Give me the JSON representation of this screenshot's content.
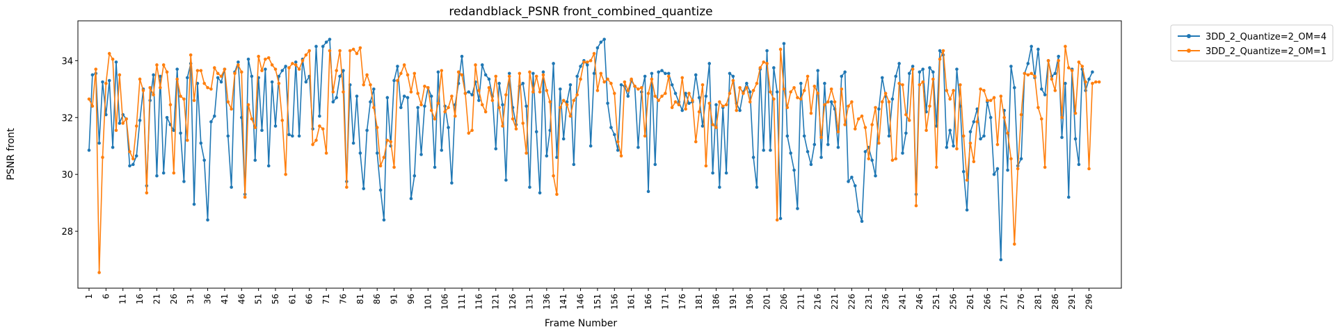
{
  "chart_data": {
    "type": "line",
    "title": "redandblack_PSNR front_combined_quantize",
    "xlabel": "Frame Number",
    "ylabel": "PSNR front",
    "xlim": [
      1,
      300
    ],
    "ylim": [
      26.0,
      35.4
    ],
    "x_ticks": [
      "1",
      "6",
      "11",
      "16",
      "21",
      "26",
      "31",
      "36",
      "41",
      "46",
      "51",
      "56",
      "61",
      "66",
      "71",
      "76",
      "81",
      "86",
      "91",
      "96",
      "101",
      "106",
      "111",
      "116",
      "121",
      "126",
      "131",
      "136",
      "141",
      "146",
      "151",
      "156",
      "161",
      "166",
      "171",
      "176",
      "181",
      "186",
      "191",
      "196",
      "201",
      "206",
      "211",
      "216",
      "221",
      "226",
      "231",
      "236",
      "241",
      "246",
      "251",
      "256",
      "261",
      "266",
      "271",
      "276",
      "281",
      "286",
      "291",
      "296"
    ],
    "y_ticks": [
      "28",
      "30",
      "32",
      "34"
    ],
    "y_tick_values": [
      28,
      30,
      32,
      34
    ],
    "legend_position": "outside-upper-right",
    "grid": false,
    "series": [
      {
        "name": "3DD_2_Quantize=2_OM=4",
        "color": "#1f77b4",
        "values": [
          30.85,
          33.5,
          33.55,
          31.1,
          33.25,
          32.1,
          33.3,
          30.95,
          33.95,
          31.8,
          32.1,
          31.95,
          30.3,
          30.35,
          30.65,
          31.9,
          33.0,
          29.6,
          32.6,
          33.5,
          29.95,
          33.45,
          30.05,
          32.0,
          31.75,
          31.55,
          33.7,
          31.45,
          29.75,
          33.4,
          33.9,
          28.95,
          33.2,
          31.1,
          30.5,
          28.4,
          31.85,
          32.05,
          33.4,
          33.25,
          33.7,
          31.35,
          29.55,
          33.6,
          33.95,
          32.0,
          29.3,
          34.05,
          33.45,
          30.5,
          33.4,
          31.55,
          33.7,
          30.3,
          33.25,
          31.7,
          33.45,
          33.65,
          33.8,
          31.4,
          31.35,
          33.95,
          31.35,
          34.05,
          33.25,
          33.45,
          31.6,
          34.5,
          32.05,
          34.5,
          34.65,
          34.75,
          32.55,
          32.7,
          33.45,
          33.65,
          29.75,
          33.15,
          31.1,
          32.75,
          30.75,
          29.5,
          31.55,
          32.55,
          33.0,
          30.75,
          29.45,
          28.4,
          32.7,
          31.0,
          33.3,
          33.8,
          32.35,
          32.75,
          32.7,
          29.15,
          29.95,
          32.35,
          30.7,
          32.4,
          33.05,
          32.75,
          30.25,
          33.6,
          30.85,
          32.4,
          31.65,
          29.7,
          32.45,
          33.2,
          34.15,
          32.85,
          32.9,
          32.8,
          33.25,
          32.6,
          33.85,
          33.5,
          33.35,
          32.75,
          30.9,
          33.2,
          32.45,
          29.8,
          33.55,
          32.35,
          31.75,
          33.1,
          33.2,
          32.4,
          29.55,
          33.55,
          31.5,
          29.35,
          33.6,
          30.65,
          31.55,
          33.9,
          30.6,
          33.0,
          31.25,
          32.55,
          33.15,
          30.35,
          33.45,
          33.8,
          34.0,
          33.85,
          31.0,
          33.55,
          34.45,
          34.65,
          34.75,
          32.5,
          31.65,
          31.4,
          30.85,
          33.15,
          33.1,
          32.75,
          33.3,
          33.1,
          30.95,
          32.9,
          33.45,
          29.4,
          33.55,
          30.35,
          33.6,
          33.65,
          33.55,
          33.55,
          33.15,
          32.85,
          32.55,
          32.25,
          32.85,
          32.5,
          32.55,
          33.5,
          32.7,
          31.7,
          32.75,
          33.9,
          30.05,
          32.45,
          29.55,
          32.35,
          30.05,
          33.55,
          33.45,
          32.5,
          32.25,
          32.9,
          33.2,
          32.9,
          30.6,
          29.55,
          33.7,
          30.85,
          34.35,
          30.85,
          33.75,
          32.9,
          28.45,
          34.6,
          31.35,
          30.75,
          30.15,
          28.8,
          33.2,
          31.35,
          30.8,
          30.35,
          31.05,
          33.65,
          30.6,
          33.2,
          31.05,
          32.55,
          32.3,
          30.95,
          33.45,
          33.6,
          29.75,
          29.9,
          29.6,
          28.7,
          28.35,
          30.8,
          30.95,
          30.5,
          29.95,
          32.3,
          33.4,
          32.75,
          31.35,
          32.65,
          33.45,
          33.9,
          30.75,
          31.45,
          33.55,
          33.8,
          29.3,
          33.6,
          33.7,
          32.2,
          33.75,
          33.6,
          31.7,
          34.35,
          34.2,
          30.95,
          31.55,
          31.0,
          33.7,
          32.4,
          30.1,
          28.75,
          31.5,
          31.85,
          32.3,
          31.25,
          31.35,
          32.55,
          32.0,
          30.0,
          30.2,
          27.0,
          32.25,
          30.15,
          33.8,
          33.05,
          30.3,
          30.55,
          33.55,
          33.9,
          34.5,
          33.4,
          34.4,
          33.0,
          32.8,
          34.0,
          33.45,
          33.55,
          34.15,
          31.3,
          33.2,
          29.2,
          33.7,
          31.25,
          30.35,
          33.7,
          32.95,
          33.35,
          33.6
        ]
      },
      {
        "name": "3DD_2_Quantize=2_OM=1",
        "color": "#ff7f0e",
        "values": [
          32.65,
          32.4,
          33.7,
          26.55,
          30.6,
          33.2,
          34.25,
          34.05,
          31.55,
          33.5,
          31.8,
          31.95,
          30.8,
          30.55,
          31.7,
          33.35,
          32.95,
          29.35,
          33.05,
          32.8,
          33.85,
          33.05,
          33.85,
          33.6,
          32.45,
          30.05,
          33.35,
          32.75,
          32.65,
          31.2,
          34.2,
          32.6,
          33.65,
          33.65,
          33.2,
          33.05,
          33.0,
          33.75,
          33.55,
          33.45,
          33.7,
          32.55,
          32.3,
          33.55,
          33.85,
          33.6,
          29.2,
          32.45,
          31.95,
          31.65,
          34.15,
          33.65,
          34.05,
          34.1,
          33.85,
          33.7,
          33.2,
          31.9,
          30.0,
          33.75,
          33.9,
          33.85,
          33.7,
          34.0,
          34.2,
          34.35,
          31.05,
          31.2,
          31.7,
          31.6,
          30.75,
          34.35,
          32.9,
          33.65,
          34.35,
          32.9,
          29.55,
          34.35,
          34.4,
          34.25,
          34.45,
          33.15,
          33.5,
          33.15,
          32.35,
          31.65,
          30.3,
          30.6,
          31.2,
          31.15,
          30.25,
          33.3,
          33.55,
          33.85,
          33.5,
          32.9,
          33.55,
          32.85,
          32.45,
          33.1,
          33.05,
          32.25,
          31.95,
          32.5,
          33.65,
          32.2,
          32.35,
          32.75,
          32.05,
          33.6,
          33.5,
          32.85,
          31.45,
          31.55,
          33.85,
          32.95,
          32.45,
          32.2,
          33.05,
          32.6,
          33.45,
          32.35,
          31.7,
          32.8,
          33.45,
          31.95,
          31.6,
          33.55,
          31.8,
          30.75,
          33.6,
          32.9,
          33.45,
          32.9,
          33.5,
          32.95,
          32.55,
          29.95,
          29.3,
          32.35,
          32.6,
          32.45,
          32.05,
          32.6,
          32.8,
          33.35,
          33.95,
          33.95,
          34.0,
          34.25,
          32.95,
          33.55,
          33.25,
          33.35,
          33.2,
          32.85,
          31.15,
          30.65,
          33.25,
          32.95,
          33.35,
          33.1,
          33.0,
          33.05,
          31.35,
          32.85,
          33.35,
          32.75,
          32.6,
          32.75,
          32.85,
          33.45,
          32.35,
          32.55,
          32.45,
          33.4,
          32.3,
          32.85,
          32.6,
          31.15,
          32.2,
          33.15,
          30.3,
          32.5,
          31.75,
          31.65,
          32.55,
          32.4,
          32.45,
          32.85,
          33.3,
          32.25,
          33.05,
          32.85,
          33.05,
          32.55,
          32.95,
          33.2,
          33.75,
          33.95,
          33.9,
          32.9,
          32.65,
          28.4,
          34.4,
          33.0,
          32.35,
          32.9,
          33.05,
          32.7,
          32.65,
          32.95,
          33.45,
          32.15,
          33.1,
          32.85,
          31.3,
          32.45,
          32.55,
          33.0,
          32.55,
          31.5,
          33.0,
          31.75,
          32.4,
          32.55,
          31.6,
          31.95,
          32.05,
          31.65,
          30.55,
          31.75,
          32.35,
          31.1,
          32.55,
          32.85,
          32.55,
          30.5,
          30.55,
          33.2,
          33.15,
          32.1,
          31.9,
          33.7,
          28.9,
          33.15,
          33.25,
          31.55,
          32.4,
          33.35,
          30.25,
          34.05,
          34.35,
          32.95,
          32.65,
          32.95,
          30.9,
          33.15,
          31.35,
          29.8,
          31.1,
          30.45,
          31.85,
          33.0,
          32.95,
          32.6,
          32.6,
          32.7,
          31.05,
          32.75,
          32.0,
          31.45,
          30.55,
          27.55,
          30.2,
          32.1,
          33.55,
          33.5,
          33.55,
          33.45,
          32.35,
          31.95,
          30.25,
          34.0,
          33.35,
          32.95,
          34.0,
          32.0,
          34.5,
          33.75,
          33.65,
          32.15,
          33.95,
          33.8,
          33.25,
          30.2,
          33.2,
          33.25,
          33.25
        ]
      }
    ]
  }
}
